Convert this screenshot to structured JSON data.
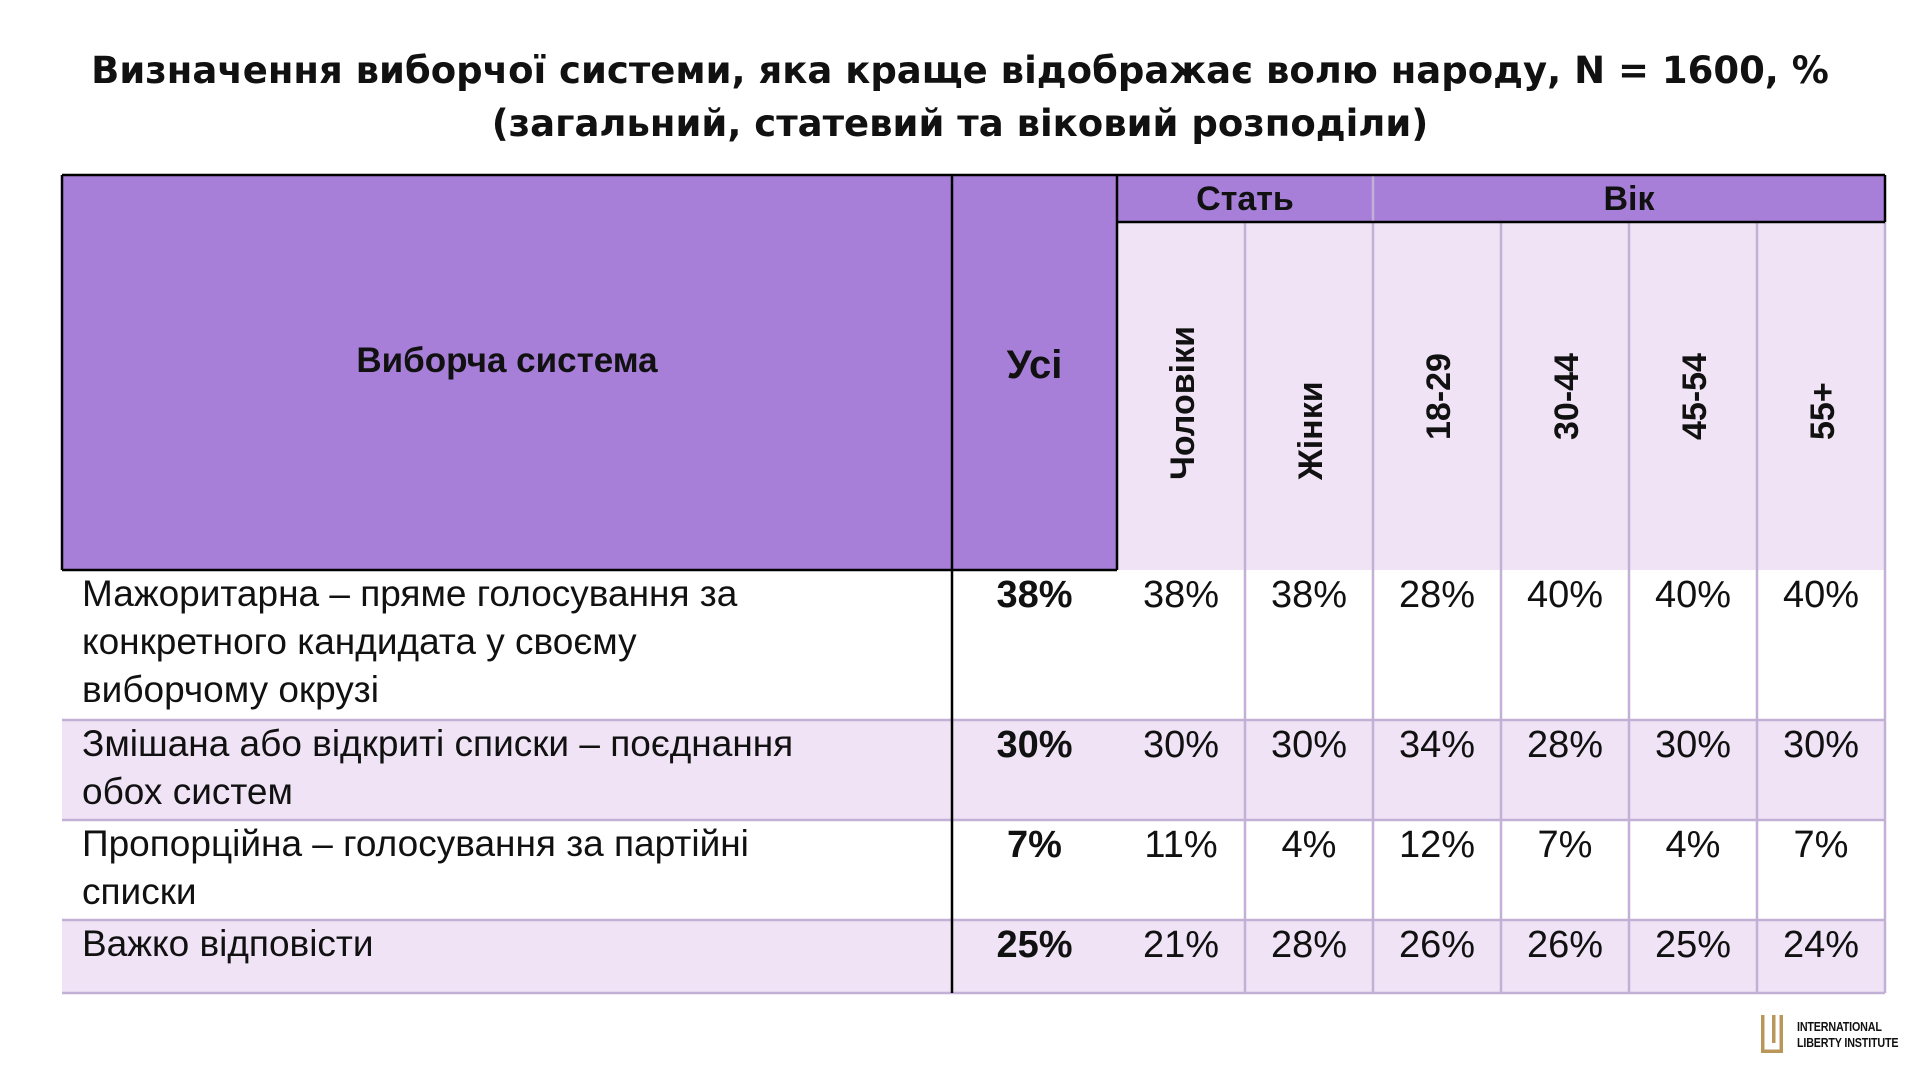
{
  "title": {
    "line1": "Визначення виборчої системи, яка краще відображає волю народу, N = 1600, %",
    "line2": "(загальний, статевий та віковий розподіли)"
  },
  "chart_data": {
    "type": "table",
    "header": {
      "row_label": "Виборча система",
      "total_label": "Усі",
      "groups": [
        {
          "label": "Стать",
          "columns": [
            "Чоловіки",
            "Жінки"
          ]
        },
        {
          "label": "Вік",
          "columns": [
            "18-29",
            "30-44",
            "45-54",
            "55+"
          ]
        }
      ]
    },
    "rows": [
      {
        "label_lines": [
          "Мажоритарна – пряме голосування за",
          "конкретного кандидата у своєму",
          "виборчому окрузі"
        ],
        "total": "38%",
        "values": [
          "38%",
          "38%",
          "28%",
          "40%",
          "40%",
          "40%"
        ]
      },
      {
        "label_lines": [
          "Змішана або відкриті списки – поєднання",
          "обох систем"
        ],
        "total": "30%",
        "values": [
          "30%",
          "30%",
          "34%",
          "28%",
          "30%",
          "30%"
        ]
      },
      {
        "label_lines": [
          "Пропорційна – голосування за партійні",
          "списки"
        ],
        "total": "7%",
        "values": [
          "11%",
          "4%",
          "12%",
          "7%",
          "4%",
          "7%"
        ]
      },
      {
        "label_lines": [
          "Важко відповісти"
        ],
        "total": "25%",
        "values": [
          "21%",
          "28%",
          "26%",
          "26%",
          "25%",
          "24%"
        ]
      }
    ]
  },
  "colors": {
    "header_fill": "#a77fd9",
    "light_fill": "#efe3f5",
    "grid_light": "#c2b0d6",
    "border_dark": "#000000",
    "logo_gold": "#b9975b"
  },
  "logo": {
    "line1": "INTERNATIONAL",
    "line2": "LIBERTY INSTITUTE"
  }
}
